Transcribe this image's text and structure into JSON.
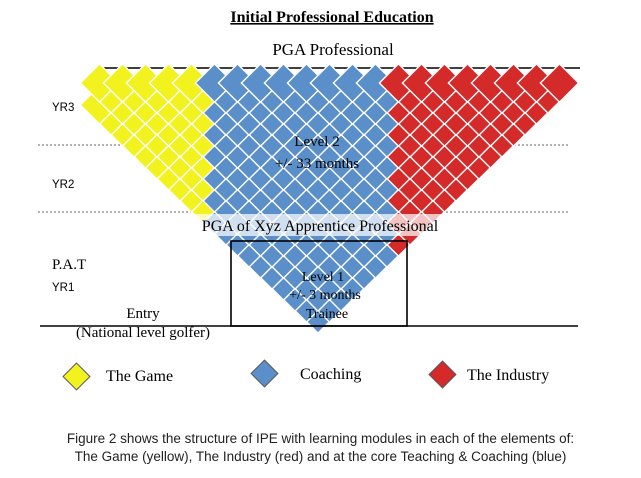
{
  "title": "Initial Professional Education",
  "top_label": "PGA Professional",
  "year_labels": [
    "YR3",
    "YR2",
    "YR1"
  ],
  "pat_label": "P.A.T",
  "entry_label": "Entry",
  "entry_sub": "(National level golfer)",
  "level2": {
    "line1": "Level 2",
    "line2": "+/- 33 months"
  },
  "apprentice_label": "PGA of Xyz Apprentice Professional",
  "level1": {
    "line1": "Level 1",
    "line2": "+/- 3 months",
    "line3": "Trainee"
  },
  "legend": [
    {
      "label": "The Game",
      "color": "#f2f21e"
    },
    {
      "label": "Coaching",
      "color": "#5b8fc9"
    },
    {
      "label": "The Industry",
      "color": "#d42a2a"
    }
  ],
  "caption": {
    "line1": "Figure 2 shows the structure of IPE with learning modules in each of the elements of:",
    "line2": "The Game (yellow), The Industry (red) and at the core Teaching & Coaching (blue)"
  },
  "colors": {
    "game": "#f2f21e",
    "coaching": "#5b8fc9",
    "industry": "#d42a2a",
    "year_label": "#e0572a"
  }
}
